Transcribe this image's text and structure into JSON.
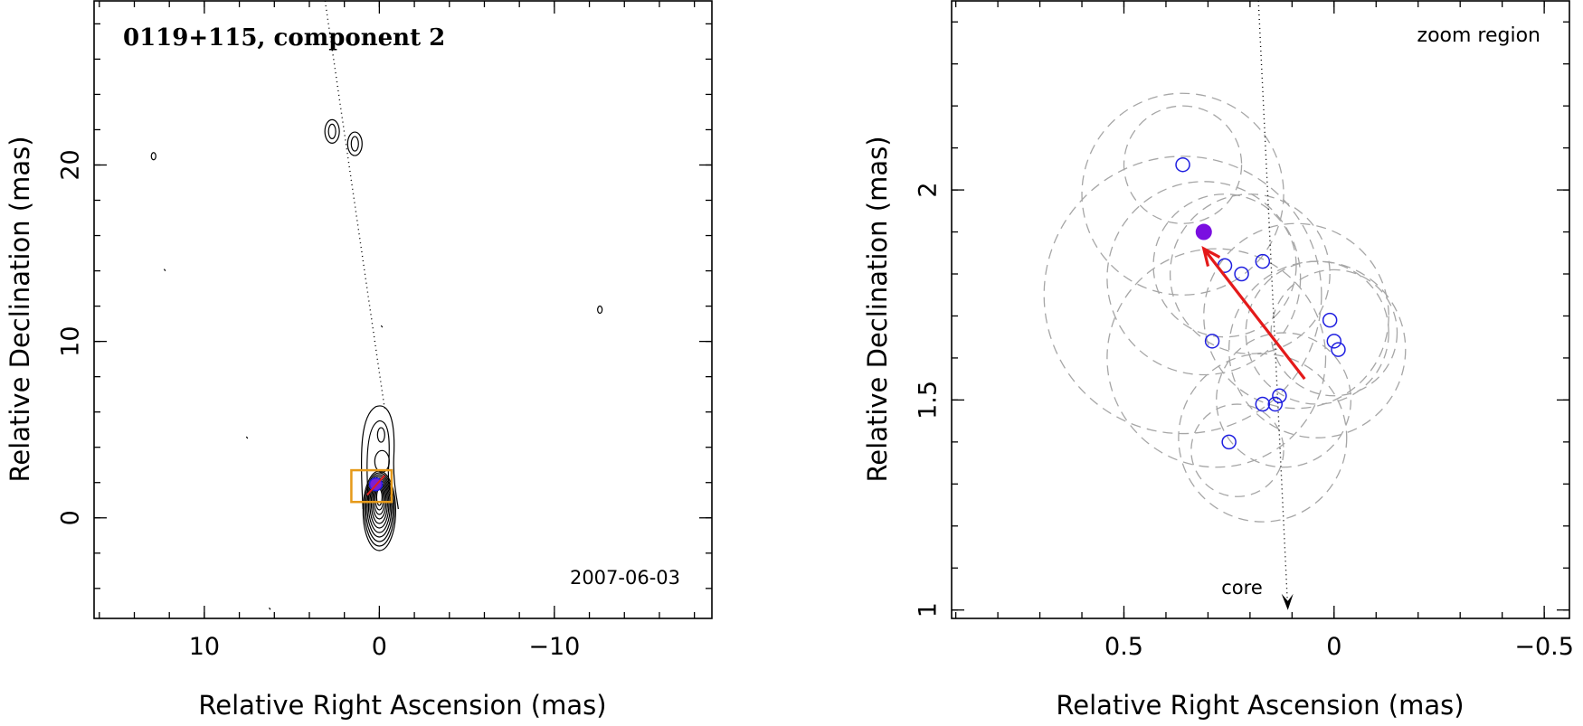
{
  "chart_data": [
    {
      "type": "contour",
      "title": "0119+115, component 2",
      "xlabel": "Relative Right Ascension (mas)",
      "ylabel": "Relative Declination (mas)",
      "xlim": [
        16.3,
        -19.0
      ],
      "ylim": [
        -5.7,
        29.3
      ],
      "x_ticks": [
        10,
        0,
        -10
      ],
      "x_tick_labels": [
        "10",
        "0",
        "−10"
      ],
      "y_ticks": [
        0,
        10,
        20
      ],
      "y_tick_labels": [
        "0",
        "10",
        "20"
      ],
      "date_label": "2007-06-03",
      "trajectory_line": {
        "x": [
          3.1,
          -0.3
        ],
        "y": [
          29.3,
          6.2
        ]
      },
      "zoom_box": {
        "x": [
          1.6,
          -0.7
        ],
        "y": [
          0.9,
          2.7
        ]
      },
      "component_position": {
        "x": 0.2,
        "y": 1.9
      },
      "outer_isolated_contours": [
        {
          "x": 2.7,
          "y": 21.9
        },
        {
          "x": 1.4,
          "y": 21.2
        },
        {
          "x": 12.9,
          "y": 20.5
        },
        {
          "x": -12.6,
          "y": 11.8
        }
      ]
    },
    {
      "type": "scatter",
      "title": "zoom region",
      "xlabel": "Relative Right Ascension (mas)",
      "ylabel": "Relative Declination (mas)",
      "xlim": [
        0.91,
        -0.56
      ],
      "ylim": [
        0.98,
        2.45
      ],
      "x_ticks": [
        0.5,
        0,
        -0.5
      ],
      "x_tick_labels": [
        "0.5",
        "0",
        "−0.5"
      ],
      "y_ticks": [
        1,
        1.5,
        2
      ],
      "y_tick_labels": [
        "1",
        "1.5",
        "2"
      ],
      "core_label": "core",
      "core_line": {
        "x": [
          0.18,
          0.11
        ],
        "y": [
          2.45,
          1.0
        ]
      },
      "positions": {
        "x": [
          0.36,
          0.26,
          0.22,
          0.17,
          0.29,
          -0.01,
          0.0,
          0.01,
          0.17,
          0.14,
          0.13,
          0.25
        ],
        "y": [
          2.06,
          1.82,
          1.8,
          1.83,
          1.64,
          1.62,
          1.64,
          1.69,
          1.49,
          1.49,
          1.51,
          1.4
        ]
      },
      "filled_point": {
        "x": 0.31,
        "y": 1.9
      },
      "arrow": {
        "x": [
          0.07,
          0.31
        ],
        "y": [
          1.55,
          1.86
        ]
      },
      "uncertainty_circles": [
        {
          "x": 0.36,
          "y": 2.06,
          "r": 0.14
        },
        {
          "x": 0.36,
          "y": 1.99,
          "r": 0.24
        },
        {
          "x": 0.26,
          "y": 1.82,
          "r": 0.17
        },
        {
          "x": 0.2,
          "y": 1.8,
          "r": 0.19
        },
        {
          "x": 0.31,
          "y": 1.79,
          "r": 0.23
        },
        {
          "x": 0.36,
          "y": 1.75,
          "r": 0.33
        },
        {
          "x": 0.28,
          "y": 1.6,
          "r": 0.26
        },
        {
          "x": 0.09,
          "y": 1.7,
          "r": 0.22
        },
        {
          "x": 0.04,
          "y": 1.66,
          "r": 0.17
        },
        {
          "x": 0.0,
          "y": 1.66,
          "r": 0.15
        },
        {
          "x": 0.04,
          "y": 1.62,
          "r": 0.21
        },
        {
          "x": 0.12,
          "y": 1.5,
          "r": 0.16
        },
        {
          "x": 0.17,
          "y": 1.41,
          "r": 0.2
        },
        {
          "x": 0.23,
          "y": 1.38,
          "r": 0.11
        }
      ]
    }
  ]
}
